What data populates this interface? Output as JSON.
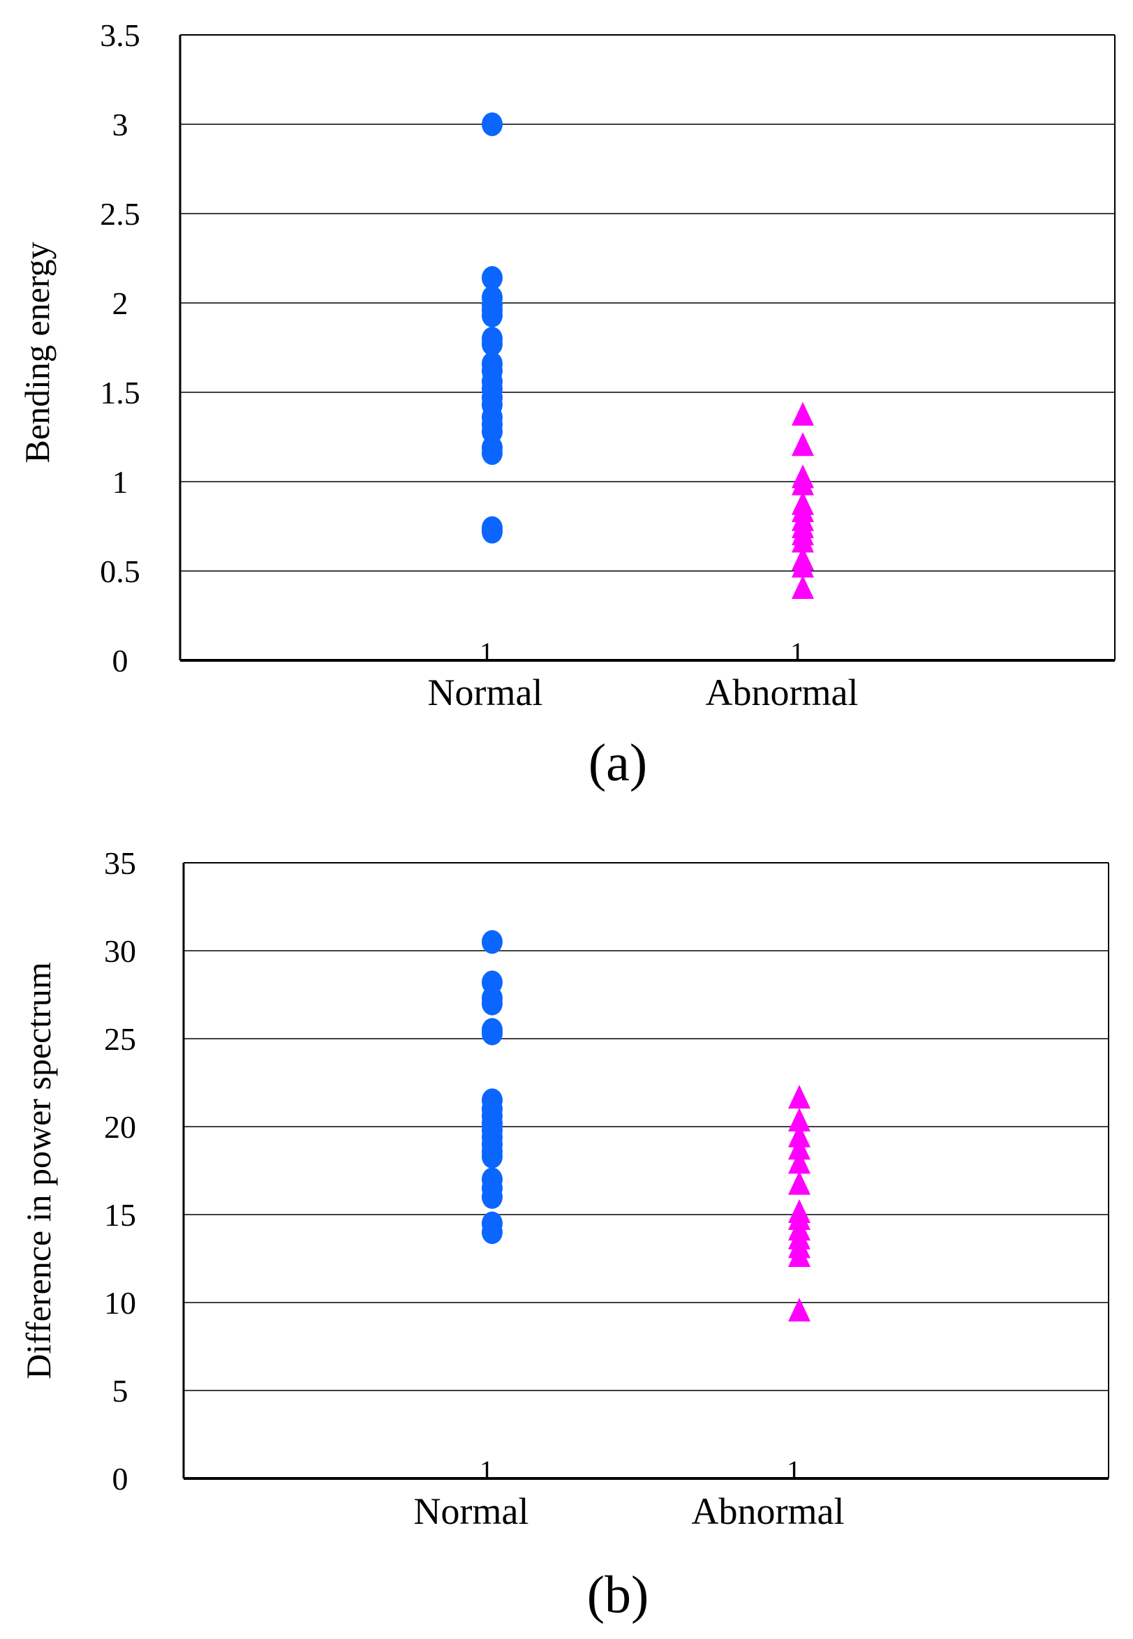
{
  "colors": {
    "normal": "#0a66ff",
    "abnormal": "#ff00ff",
    "grid": "#000000",
    "frame": "#000000"
  },
  "chart_data": [
    {
      "type": "scatter",
      "panel_label": "(a)",
      "title": "",
      "xlabel": "",
      "ylabel": "Bending energy",
      "ylim": [
        0,
        3.5
      ],
      "yticks": [
        0,
        0.5,
        1,
        1.5,
        2,
        2.5,
        3,
        3.5
      ],
      "ytick_labels": [
        "0",
        "0.5",
        "1",
        "1.5",
        "2",
        "2.5",
        "3",
        "3.5"
      ],
      "grid": true,
      "categories": [
        "Normal",
        "Abnormal"
      ],
      "category_tick_labels": [
        "1",
        "1"
      ],
      "series": [
        {
          "name": "Normal",
          "marker": "circle",
          "values": [
            3.0,
            2.14,
            2.03,
            1.99,
            1.96,
            1.93,
            1.8,
            1.77,
            1.66,
            1.62,
            1.56,
            1.52,
            1.47,
            1.43,
            1.36,
            1.32,
            1.28,
            1.19,
            1.16,
            0.74,
            0.72
          ]
        },
        {
          "name": "Abnormal",
          "marker": "triangle",
          "values": [
            1.38,
            1.21,
            1.03,
            0.99,
            0.88,
            0.84,
            0.79,
            0.75,
            0.71,
            0.67,
            0.57,
            0.53,
            0.41
          ]
        }
      ]
    },
    {
      "type": "scatter",
      "panel_label": "(b)",
      "title": "",
      "xlabel": "",
      "ylabel": "Difference in power spectrum",
      "ylim": [
        0,
        35
      ],
      "yticks": [
        0,
        5,
        10,
        15,
        20,
        25,
        30,
        35
      ],
      "ytick_labels": [
        "0",
        "5",
        "10",
        "15",
        "20",
        "25",
        "30",
        "35"
      ],
      "grid": true,
      "categories": [
        "Normal",
        "Abnormal"
      ],
      "category_tick_labels": [
        "1",
        "1"
      ],
      "series": [
        {
          "name": "Normal",
          "marker": "circle",
          "values": [
            30.5,
            28.2,
            27.3,
            27.0,
            25.5,
            25.3,
            21.5,
            21.0,
            20.6,
            20.2,
            19.8,
            19.4,
            19.0,
            18.6,
            18.3,
            17.0,
            16.5,
            16.0,
            14.5,
            14.0
          ]
        },
        {
          "name": "Abnormal",
          "marker": "triangle",
          "values": [
            21.7,
            20.4,
            19.5,
            18.8,
            18.0,
            16.8,
            15.2,
            14.8,
            14.2,
            13.7,
            13.2,
            12.7,
            9.6
          ]
        }
      ]
    }
  ]
}
